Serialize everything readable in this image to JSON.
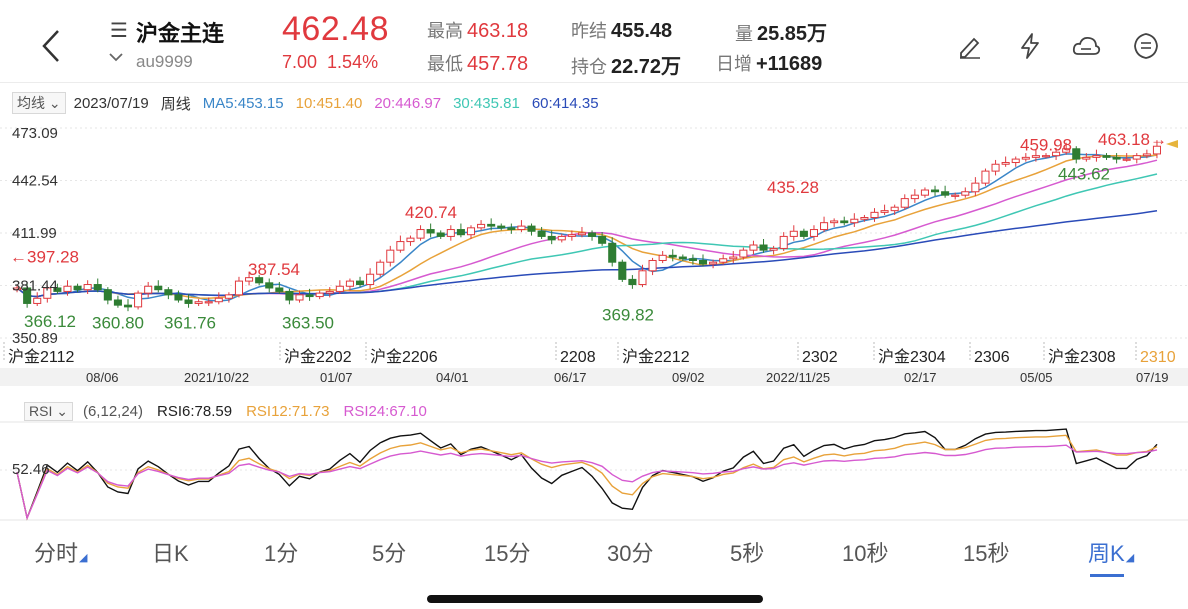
{
  "header": {
    "title": "沪金主连",
    "code": "au9999",
    "price": "462.48",
    "change": "7.00",
    "change_pct": "1.54%",
    "high_label": "最高",
    "high_value": "463.18",
    "low_label": "最低",
    "low_value": "457.78",
    "prev_close_label": "昨结",
    "prev_close_value": "455.48",
    "open_interest_label": "持仓",
    "open_interest_value": "22.72万",
    "volume_label": "量",
    "volume_value": "25.85万",
    "daily_inc_label": "日增",
    "daily_inc_value": "+11689",
    "icons": [
      "back-icon",
      "menu-icon",
      "chevron-down-icon",
      "pencil-icon",
      "lightning-icon",
      "cloud-share-icon",
      "list-icon"
    ]
  },
  "ma_bar": {
    "selector": "均线",
    "date": "2023/07/19",
    "period": "周线",
    "ma5": "MA5:453.15",
    "ma10": "10:451.40",
    "ma20": "20:446.97",
    "ma30": "30:435.81",
    "ma60": "60:414.35"
  },
  "colors": {
    "up": "#e0393e",
    "down": "#2e7d32",
    "ma5": "#3a86c8",
    "ma10": "#e8a23a",
    "ma20": "#d65ad0",
    "ma30": "#3fc7b4",
    "ma60": "#2a4bb8",
    "accent": "#3b6fd1"
  },
  "chart_data": [
    {
      "type": "candlestick",
      "y_tick_labels": [
        "473.09",
        "442.54",
        "411.99",
        "381.44",
        "350.89"
      ],
      "ylim": [
        350.89,
        473.09
      ],
      "contracts": [
        "沪金2112",
        "沪金2202",
        "沪金2206",
        "2208",
        "沪金2212",
        "2302",
        "沪金2304",
        "2306",
        "沪金2308",
        "2310"
      ],
      "dates": [
        "08/06",
        "2021/10/22",
        "01/07",
        "04/01",
        "06/17",
        "09/02",
        "2022/11/25",
        "02/17",
        "05/05",
        "07/19"
      ],
      "annotations": [
        "←397.28",
        "387.54",
        "420.74",
        "435.28",
        "459.98",
        "463.18→",
        "366.12",
        "360.80",
        "361.76",
        "363.50",
        "369.82",
        "443.62"
      ],
      "closes": [
        380,
        371,
        374,
        380,
        378,
        381,
        379,
        382,
        379,
        373,
        370,
        369,
        377,
        381,
        379,
        376,
        373,
        371,
        372,
        372,
        374,
        376,
        384,
        386,
        383,
        380,
        378,
        373,
        376,
        375,
        377,
        378,
        381,
        384,
        382,
        388,
        395,
        402,
        407,
        409,
        414,
        412,
        410,
        414,
        411,
        415,
        417,
        416,
        415,
        414,
        416,
        413,
        410,
        408,
        410,
        411,
        412,
        410,
        406,
        395,
        385,
        382,
        390,
        396,
        399,
        398,
        397,
        396,
        394,
        395,
        397,
        398,
        402,
        405,
        402,
        403,
        410,
        413,
        410,
        414,
        418,
        419,
        418,
        420,
        421,
        424,
        425,
        427,
        432,
        434,
        437,
        436,
        434,
        434,
        436,
        441,
        448,
        452,
        453,
        455,
        456,
        457,
        457,
        459,
        461,
        455,
        456,
        457,
        456,
        455,
        455,
        457,
        458,
        462.48
      ],
      "ma_series": {
        "MA5": "453.15",
        "MA10": "451.40",
        "MA20": "446.97",
        "MA30": "435.81",
        "MA60": "414.35"
      }
    },
    {
      "type": "line",
      "name": "RSI",
      "params": "(6,12,24)",
      "rsi6": "RSI6:78.59",
      "rsi12": "RSI12:71.73",
      "rsi24": "RSI24:67.10",
      "y_tick_label": "52.46"
    }
  ],
  "rsi_bar": {
    "selector": "RSI",
    "params": "(6,12,24)",
    "rsi6": "RSI6:78.59",
    "rsi12": "RSI12:71.73",
    "rsi24": "RSI24:67.10"
  },
  "tabs": [
    {
      "label": "分时",
      "has_dropdown": true
    },
    {
      "label": "日K",
      "has_dropdown": false
    },
    {
      "label": "1分",
      "has_dropdown": false
    },
    {
      "label": "5分",
      "has_dropdown": false
    },
    {
      "label": "15分",
      "has_dropdown": false
    },
    {
      "label": "30分",
      "has_dropdown": false
    },
    {
      "label": "5秒",
      "has_dropdown": false
    },
    {
      "label": "10秒",
      "has_dropdown": false
    },
    {
      "label": "15秒",
      "has_dropdown": false
    },
    {
      "label": "周K",
      "has_dropdown": true,
      "active": true
    }
  ]
}
